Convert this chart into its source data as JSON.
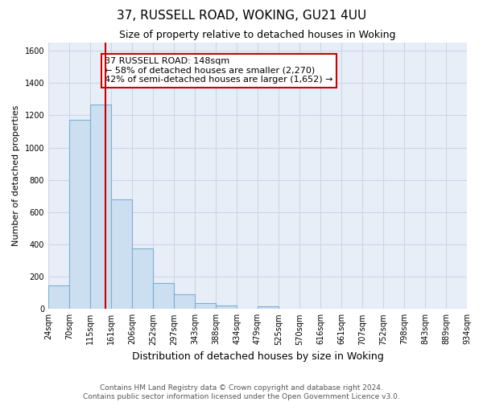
{
  "title": "37, RUSSELL ROAD, WOKING, GU21 4UU",
  "subtitle": "Size of property relative to detached houses in Woking",
  "xlabel": "Distribution of detached houses by size in Woking",
  "ylabel": "Number of detached properties",
  "bar_edges": [
    24,
    70,
    115,
    161,
    206,
    252,
    297,
    343,
    388,
    434,
    479,
    525,
    570,
    616,
    661,
    707,
    752,
    798,
    843,
    889,
    934
  ],
  "bar_heights": [
    148,
    1170,
    1265,
    680,
    375,
    160,
    93,
    37,
    22,
    0,
    14,
    0,
    0,
    0,
    0,
    0,
    0,
    0,
    0,
    0
  ],
  "bar_color": "#ccdff0",
  "bar_edge_color": "#7bafd4",
  "vline_x": 148,
  "vline_color": "#cc0000",
  "annotation_box_text": "37 RUSSELL ROAD: 148sqm\n← 58% of detached houses are smaller (2,270)\n42% of semi-detached houses are larger (1,652) →",
  "box_edge_color": "#cc0000",
  "ylim_max": 1650,
  "yticks": [
    0,
    200,
    400,
    600,
    800,
    1000,
    1200,
    1400,
    1600
  ],
  "tick_labels": [
    "24sqm",
    "70sqm",
    "115sqm",
    "161sqm",
    "206sqm",
    "252sqm",
    "297sqm",
    "343sqm",
    "388sqm",
    "434sqm",
    "479sqm",
    "525sqm",
    "570sqm",
    "616sqm",
    "661sqm",
    "707sqm",
    "752sqm",
    "798sqm",
    "843sqm",
    "889sqm",
    "934sqm"
  ],
  "footer1": "Contains HM Land Registry data © Crown copyright and database right 2024.",
  "footer2": "Contains public sector information licensed under the Open Government Licence v3.0.",
  "grid_color": "#ccd6e8",
  "bg_color": "#e8eef8",
  "title_fontsize": 11,
  "subtitle_fontsize": 9,
  "ylabel_fontsize": 8,
  "xlabel_fontsize": 9,
  "annot_fontsize": 8,
  "footer_fontsize": 6.5,
  "tick_fontsize": 7
}
